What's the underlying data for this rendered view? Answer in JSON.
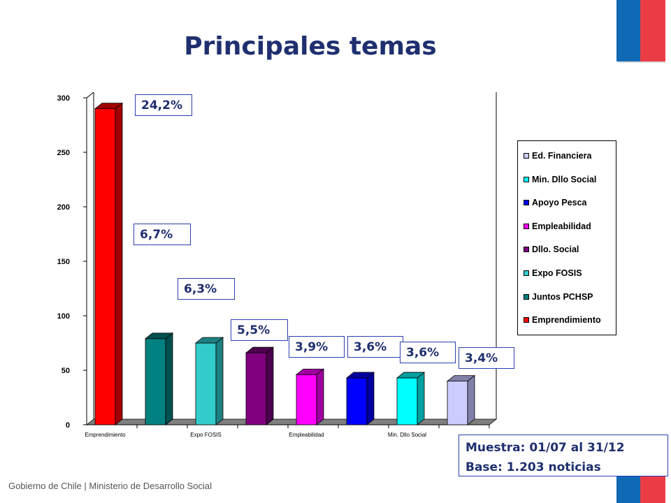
{
  "header": {
    "title": "Principales temas"
  },
  "footer": {
    "text": "Gobierno de Chile | Ministerio de Desarrollo Social"
  },
  "sample_box": {
    "line1": "Muestra: 01/07 al 31/12",
    "line2": "Base: 1.203 noticias"
  },
  "colors": {
    "title": "#1f2f6f",
    "flag_blue": "#0f69b4",
    "flag_red": "#eb3c46"
  },
  "chart_data": {
    "type": "bar",
    "categories": [
      "Emprendimiento",
      "Juntos PCHSP",
      "Expo FOSIS",
      "Dllo. Social",
      "Empleabilidad",
      "Apoyo Pesca",
      "Min. Dllo Social",
      "Ed. Financiera"
    ],
    "x_tick_labels": [
      "Emprendimiento",
      "",
      "Expo FOSIS",
      "",
      "Empleabilidad",
      "",
      "Min. Dllo Social",
      ""
    ],
    "values": [
      290,
      79,
      75,
      66,
      46,
      43,
      43,
      40
    ],
    "percent_labels": [
      "24,2%",
      "6,7%",
      "6,3%",
      "5,5%",
      "3,9%",
      "3,6%",
      "3,6%",
      "3,4%"
    ],
    "colors": [
      "#ff0000",
      "#008080",
      "#33cccc",
      "#800080",
      "#ff00ff",
      "#0000ff",
      "#00ffff",
      "#ccccff"
    ],
    "side_colors": [
      "#a00000",
      "#005050",
      "#1f8080",
      "#4d004d",
      "#a000a0",
      "#0000a0",
      "#00a0a0",
      "#8080a8"
    ],
    "yticks": [
      0,
      50,
      100,
      150,
      200,
      250,
      300
    ],
    "ylim": [
      0,
      300
    ],
    "legend": [
      "Ed. Financiera",
      "Min. Dllo Social",
      "Apoyo Pesca",
      "Empleabilidad",
      "Dllo. Social",
      "Expo FOSIS",
      "Juntos PCHSP",
      "Emprendimiento"
    ],
    "legend_colors": [
      "#ccccff",
      "#00ffff",
      "#0000ff",
      "#ff00ff",
      "#800080",
      "#33cccc",
      "#008080",
      "#ff0000"
    ],
    "legend_position": "right",
    "grid": false
  }
}
